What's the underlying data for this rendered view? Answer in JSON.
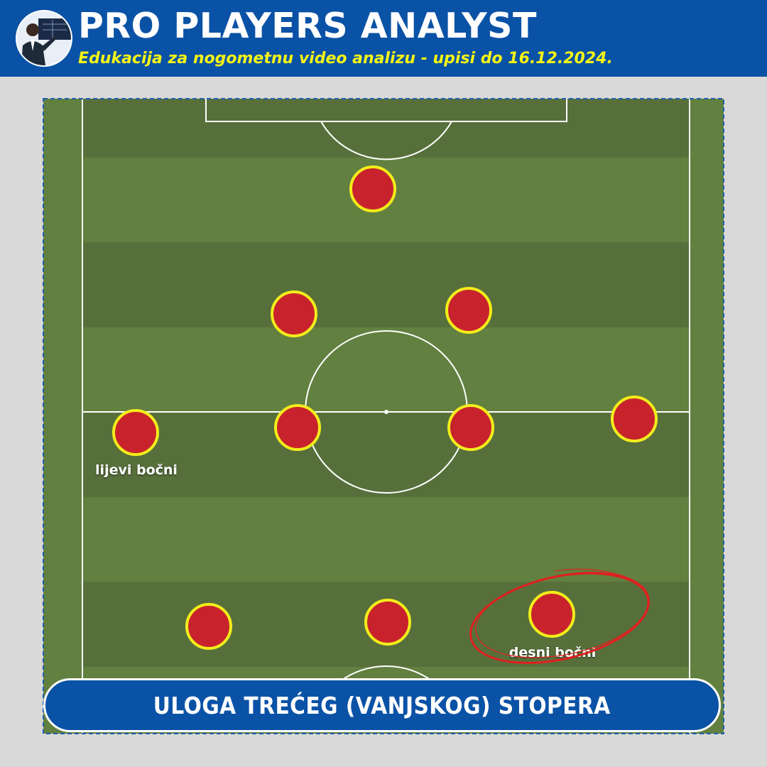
{
  "header": {
    "title": "PRO PLAYERS ANALYST",
    "subtitle": "Edukacija za nogometnu video analizu - upisi do 16.12.2024."
  },
  "pitch": {
    "label_left_back": "lijevi bočni",
    "label_right_back": "desni bočni",
    "highlight": "desni bočni"
  },
  "banner": {
    "text": "ULOGA TREĆEG (VANJSKOG) STOPERA"
  },
  "colors": {
    "header": "#0a52a6",
    "subtitle": "#f5f514",
    "grass_light": "#628040",
    "grass_dark": "#57703b",
    "player_fill": "#c8232c",
    "player_ring": "#f3ec1b",
    "highlight_ring": "#e02020"
  }
}
